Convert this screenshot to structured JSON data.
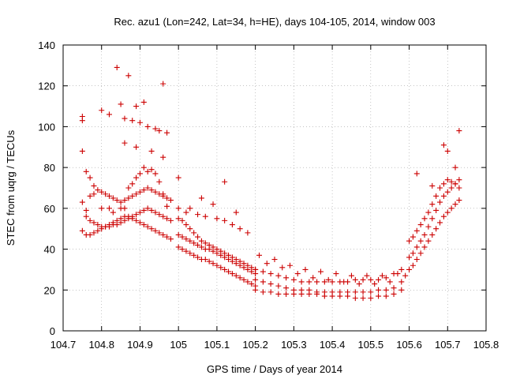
{
  "chart_data": {
    "type": "scatter",
    "title": "Rec. azu1 (Lon=242, Lat=34, h=HE), days 104-105, 2014, window 003",
    "xlabel": "GPS time / Days of year 2014",
    "ylabel": "STEC from uqrg / TECUs",
    "xlim": [
      104.7,
      105.8
    ],
    "ylim": [
      0,
      140
    ],
    "xticks": [
      104.7,
      104.8,
      104.9,
      105,
      105.1,
      105.2,
      105.3,
      105.4,
      105.5,
      105.6,
      105.7,
      105.8
    ],
    "xtick_labels": [
      "104.7",
      "104.8",
      "104.9",
      "105",
      "105.1",
      "105.2",
      "105.3",
      "105.4",
      "105.5",
      "105.6",
      "105.7",
      "105.8"
    ],
    "yticks": [
      0,
      20,
      40,
      60,
      80,
      100,
      120,
      140
    ],
    "ytick_labels": [
      "0",
      "20",
      "40",
      "60",
      "80",
      "100",
      "120",
      "140"
    ],
    "grid": true,
    "marker": "+",
    "color": "#cc0000",
    "series": [
      {
        "x": [
          104.75,
          104.75,
          104.75,
          104.76,
          104.76,
          104.77,
          104.78,
          104.79,
          104.8,
          104.81,
          104.82,
          104.83,
          104.84,
          104.85,
          104.86,
          104.87,
          104.88,
          104.89,
          104.9,
          104.91,
          104.92,
          104.93,
          104.94,
          104.95,
          104.96,
          104.97,
          104.98,
          104.75,
          104.76,
          104.77,
          104.78,
          104.79,
          104.8,
          104.81,
          104.82,
          104.83,
          104.84,
          104.85,
          104.86,
          104.87,
          104.88,
          104.89,
          104.9,
          104.91,
          104.92,
          104.93,
          104.94,
          104.95,
          104.96,
          104.97,
          104.98,
          104.75,
          104.76,
          104.77,
          104.78,
          104.79,
          104.8,
          104.81,
          104.82,
          104.83,
          104.84,
          104.85,
          104.86,
          104.87,
          104.88,
          104.89,
          104.9,
          104.91,
          104.92,
          104.93,
          104.94,
          104.95,
          104.96,
          104.97,
          104.98,
          104.77,
          104.78,
          104.8,
          104.82,
          104.83,
          104.85,
          104.86,
          104.87,
          104.88,
          104.89,
          104.9,
          104.91,
          104.92,
          104.93,
          104.94,
          104.95,
          104.96,
          104.97,
          104.84,
          104.87,
          104.96,
          104.85,
          104.89,
          104.91,
          104.8,
          104.82,
          104.86,
          104.88,
          104.9,
          104.92,
          104.94,
          104.95,
          104.97,
          104.86,
          104.89,
          104.93,
          104.96
        ],
        "y": [
          105,
          103,
          63,
          59,
          56,
          54,
          53,
          52,
          51,
          51,
          51,
          52,
          52,
          53,
          54,
          55,
          56,
          57,
          58,
          59,
          60,
          59,
          58,
          57,
          56,
          55,
          54,
          49,
          47,
          47,
          48,
          49,
          50,
          51,
          52,
          53,
          54,
          55,
          56,
          56,
          55,
          54,
          53,
          52,
          51,
          50,
          49,
          48,
          47,
          46,
          45,
          88,
          78,
          75,
          71,
          69,
          68,
          67,
          66,
          65,
          64,
          63,
          64,
          65,
          66,
          67,
          68,
          69,
          70,
          69,
          68,
          67,
          66,
          65,
          64,
          66,
          67,
          60,
          60,
          58,
          60,
          60,
          70,
          72,
          75,
          77,
          80,
          78,
          79,
          77,
          73,
          67,
          61,
          129,
          125,
          121,
          111,
          110,
          112,
          108,
          106,
          104,
          103,
          102,
          100,
          99,
          98,
          97,
          92,
          90,
          88,
          85
        ],
        "name": ""
      },
      {
        "x": [
          105.0,
          105.01,
          105.02,
          105.03,
          105.04,
          105.05,
          105.06,
          105.07,
          105.08,
          105.09,
          105.1,
          105.11,
          105.12,
          105.13,
          105.14,
          105.15,
          105.16,
          105.17,
          105.18,
          105.19,
          105.2,
          105.0,
          105.01,
          105.02,
          105.03,
          105.04,
          105.05,
          105.06,
          105.07,
          105.08,
          105.09,
          105.1,
          105.11,
          105.12,
          105.13,
          105.14,
          105.15,
          105.16,
          105.17,
          105.18,
          105.19,
          105.2,
          105.0,
          105.01,
          105.02,
          105.03,
          105.04,
          105.05,
          105.06,
          105.07,
          105.08,
          105.09,
          105.1,
          105.11,
          105.12,
          105.13,
          105.14,
          105.15,
          105.16,
          105.17,
          105.18,
          105.19,
          105.2,
          105.0,
          105.02,
          105.05,
          105.07,
          105.1,
          105.12,
          105.14,
          105.16,
          105.18,
          105.0,
          105.03,
          105.06,
          105.09,
          105.12,
          105.15
        ],
        "y": [
          41,
          40,
          39,
          38,
          37,
          36,
          35,
          35,
          34,
          33,
          32,
          31,
          30,
          29,
          28,
          27,
          26,
          25,
          24,
          23,
          22,
          47,
          46,
          45,
          44,
          43,
          42,
          41,
          40,
          40,
          39,
          38,
          37,
          36,
          35,
          34,
          33,
          32,
          31,
          30,
          29,
          28,
          55,
          54,
          52,
          50,
          48,
          46,
          44,
          43,
          42,
          41,
          40,
          39,
          38,
          37,
          36,
          35,
          34,
          33,
          32,
          31,
          30,
          60,
          58,
          57,
          56,
          55,
          54,
          52,
          50,
          48,
          75,
          60,
          65,
          62,
          73,
          58
        ],
        "name": ""
      },
      {
        "x": [
          105.2,
          105.22,
          105.24,
          105.26,
          105.28,
          105.3,
          105.32,
          105.34,
          105.36,
          105.38,
          105.4,
          105.42,
          105.44,
          105.46,
          105.48,
          105.5,
          105.52,
          105.54,
          105.56,
          105.58,
          105.2,
          105.22,
          105.24,
          105.26,
          105.28,
          105.3,
          105.32,
          105.34,
          105.36,
          105.38,
          105.4,
          105.42,
          105.44,
          105.46,
          105.48,
          105.5,
          105.52,
          105.54,
          105.56,
          105.58,
          105.2,
          105.22,
          105.24,
          105.26,
          105.28,
          105.3,
          105.32,
          105.34,
          105.36,
          105.38,
          105.4,
          105.42,
          105.44,
          105.46,
          105.48,
          105.5,
          105.52,
          105.54,
          105.56,
          105.58,
          105.21,
          105.25,
          105.29,
          105.33,
          105.37,
          105.41,
          105.45,
          105.49,
          105.53,
          105.57,
          105.23,
          105.27,
          105.31,
          105.35,
          105.39,
          105.43,
          105.47,
          105.51,
          105.55,
          105.59
        ],
        "y": [
          20,
          19,
          19,
          18,
          18,
          18,
          18,
          18,
          18,
          17,
          17,
          17,
          17,
          16,
          16,
          16,
          17,
          17,
          18,
          20,
          25,
          24,
          23,
          22,
          21,
          20,
          20,
          20,
          19,
          19,
          19,
          19,
          19,
          19,
          19,
          19,
          20,
          20,
          21,
          24,
          30,
          29,
          28,
          27,
          26,
          25,
          24,
          24,
          24,
          24,
          24,
          24,
          24,
          25,
          25,
          25,
          25,
          26,
          28,
          30,
          37,
          35,
          32,
          30,
          29,
          28,
          27,
          27,
          27,
          28,
          33,
          31,
          28,
          26,
          25,
          24,
          23,
          23,
          24,
          27
        ],
        "name": ""
      },
      {
        "x": [
          105.6,
          105.61,
          105.62,
          105.63,
          105.64,
          105.65,
          105.66,
          105.67,
          105.68,
          105.69,
          105.7,
          105.71,
          105.72,
          105.73,
          105.6,
          105.61,
          105.62,
          105.63,
          105.64,
          105.65,
          105.66,
          105.67,
          105.68,
          105.69,
          105.7,
          105.71,
          105.72,
          105.73,
          105.6,
          105.61,
          105.62,
          105.63,
          105.64,
          105.65,
          105.66,
          105.67,
          105.68,
          105.69,
          105.7,
          105.71,
          105.72,
          105.73,
          105.62,
          105.66,
          105.69,
          105.7,
          105.72,
          105.73
        ],
        "y": [
          30,
          32,
          35,
          38,
          41,
          44,
          47,
          50,
          53,
          56,
          58,
          60,
          62,
          64,
          36,
          38,
          41,
          44,
          47,
          51,
          55,
          59,
          63,
          66,
          68,
          70,
          72,
          74,
          44,
          46,
          49,
          52,
          55,
          58,
          62,
          66,
          70,
          72,
          74,
          73,
          72,
          70,
          77,
          71,
          91,
          88,
          80,
          98
        ],
        "name": ""
      }
    ]
  }
}
